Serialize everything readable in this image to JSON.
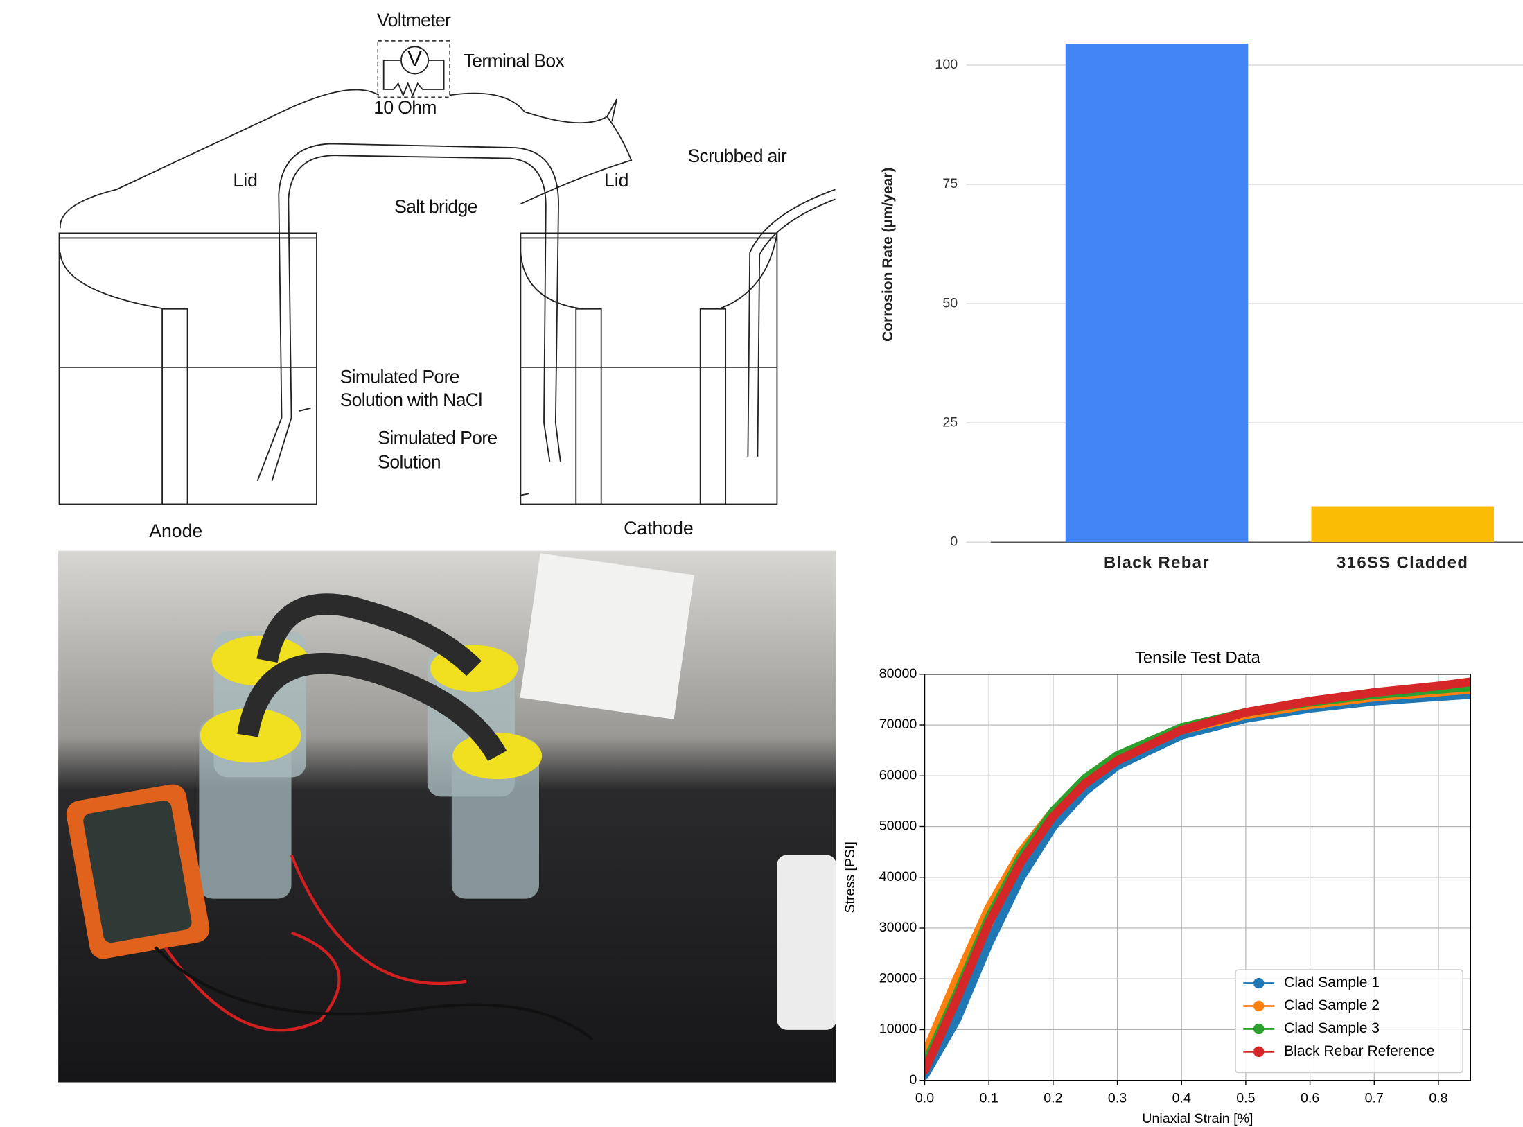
{
  "diagram": {
    "voltmeter": "Voltmeter",
    "meter_symbol": "V",
    "terminal_box": "Terminal Box",
    "resistor": "10 Ohm",
    "lid_left": "Lid",
    "salt_bridge": "Salt bridge",
    "lid_right": "Lid",
    "scrubbed_air": "Scrubbed air",
    "solution_nacl": [
      "Simulated Pore",
      "Solution with NaCl"
    ],
    "solution": [
      "Simulated Pore",
      "Solution"
    ],
    "anode": "Anode",
    "cathode": "Cathode"
  },
  "chart_data": [
    {
      "type": "bar",
      "y_label": "Corrosion Rate (µm/year)",
      "categories": [
        "Black Rebar",
        "316SS Cladded"
      ],
      "values": [
        104.5,
        7.5
      ],
      "colors": [
        "#4285f4",
        "#fbbc04"
      ],
      "ylim": [
        0,
        105
      ],
      "yticks": [
        0,
        25,
        50,
        75,
        100
      ],
      "grid": true
    },
    {
      "type": "line",
      "title": "Tensile Test Data",
      "x_label": "Uniaxial Strain [%]",
      "y_label": "Stress [PSI]",
      "x": [
        0,
        0.05,
        0.1,
        0.15,
        0.2,
        0.25,
        0.3,
        0.4,
        0.5,
        0.6,
        0.7,
        0.8,
        0.85
      ],
      "series": [
        {
          "name": "Clad Sample 1",
          "color": "#1f77b4",
          "values": [
            1000,
            12000,
            27000,
            40000,
            50000,
            57000,
            62000,
            68000,
            71300,
            73300,
            74700,
            75600,
            76000
          ]
        },
        {
          "name": "Clad Sample 2",
          "color": "#ff7f0e",
          "values": [
            5000,
            20000,
            34000,
            45000,
            53000,
            59000,
            63500,
            69000,
            72000,
            74000,
            75500,
            76500,
            77000
          ]
        },
        {
          "name": "Clad Sample 3",
          "color": "#2ca02c",
          "values": [
            3000,
            17000,
            32000,
            44000,
            53000,
            59500,
            64000,
            69500,
            72500,
            74500,
            76000,
            77000,
            77500
          ]
        },
        {
          "name": "Black Rebar Reference",
          "color": "#d62728",
          "values": [
            2000,
            16000,
            31000,
            43000,
            52000,
            58500,
            63000,
            69000,
            72500,
            74700,
            76400,
            77700,
            78500
          ]
        }
      ],
      "xlim": [
        0,
        0.85
      ],
      "ylim": [
        0,
        80000
      ],
      "xticks": [
        {
          "value": 0,
          "label": "0.0"
        },
        0.1,
        0.2,
        0.3,
        0.4,
        0.5,
        0.6,
        0.7,
        0.8
      ],
      "yticks": [
        0,
        10000,
        20000,
        30000,
        40000,
        50000,
        60000,
        70000,
        80000
      ],
      "grid": true,
      "legend": "lower right"
    }
  ]
}
